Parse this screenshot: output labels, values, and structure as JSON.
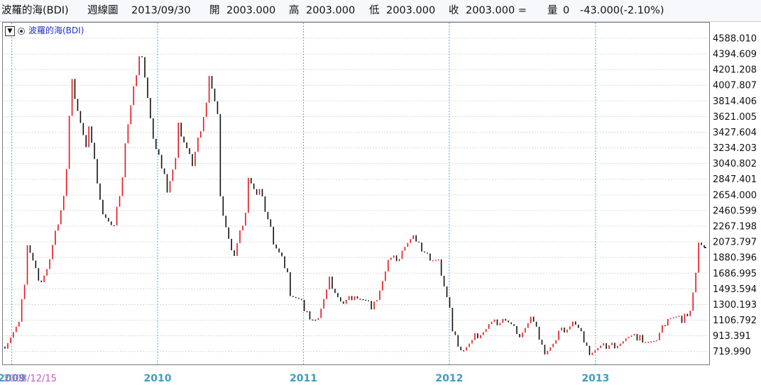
{
  "header": {
    "name": "波羅的海(BDI)",
    "period": "週線圖",
    "date": "2013/09/30",
    "open_label": "開",
    "open": "2003.000",
    "high_label": "高",
    "high": "2003.000",
    "low_label": "低",
    "low": "2003.000",
    "close_label": "收",
    "close": "2003.000 =",
    "volume_label": "量",
    "volume": "0",
    "change": "-43.000(-2.10%)"
  },
  "legend": {
    "dropdown_icon": "▼",
    "series": "波羅的海(BDI)"
  },
  "colors": {
    "up": "#e8141b",
    "down": "#111111",
    "year_label": "#3a9fc0",
    "start_label": "#c060c0",
    "grid": "#d8d8d8",
    "year_line": "#5aaed0",
    "legend": "#1f2fd0"
  },
  "chart_data": {
    "type": "candlestick",
    "title": "波羅的海(BDI)",
    "x_start_label": "2008/12/15",
    "x_year_labels": [
      "2009",
      "2010",
      "2011",
      "2012",
      "2013"
    ],
    "y_ticks": [
      "719.990",
      "913.391",
      "1106.792",
      "1300.193",
      "1493.594",
      "1686.995",
      "1880.396",
      "2073.797",
      "2267.198",
      "2460.599",
      "2654.000",
      "2847.401",
      "3040.802",
      "3234.203",
      "3427.604",
      "3621.005",
      "3814.406",
      "4007.807",
      "4201.208",
      "4394.609",
      "4588.010"
    ],
    "ylim": [
      560,
      4780
    ],
    "grid": true,
    "weekly_close": [
      [
        "2008/12/15",
        780,
        800
      ],
      [
        "2009/01/19",
        1050,
        1070
      ],
      [
        "2009/02/09",
        1850,
        2050
      ],
      [
        "2009/03/09",
        1600,
        1550
      ],
      [
        "2009/04/06",
        1800,
        1850
      ],
      [
        "2009/05/18",
        2800,
        3000
      ],
      [
        "2009/06/01",
        4280,
        4050
      ],
      [
        "2009/07/13",
        3050,
        3500
      ],
      [
        "2009/08/17",
        2400,
        2450
      ],
      [
        "2009/09/14",
        2200,
        2250
      ],
      [
        "2009/10/12",
        3100,
        3300
      ],
      [
        "2009/11/23",
        4600,
        4400
      ],
      [
        "2009/12/28",
        3050,
        3200
      ],
      [
        "2010/01/25",
        2850,
        2700
      ],
      [
        "2010/02/22",
        3200,
        3500
      ],
      [
        "2010/03/29",
        3050,
        3000
      ],
      [
        "2010/05/10",
        3950,
        4150
      ],
      [
        "2010/06/07",
        3450,
        2600
      ],
      [
        "2010/07/12",
        1800,
        1900
      ],
      [
        "2010/08/16",
        2600,
        2900
      ],
      [
        "2010/09/13",
        2550,
        2700
      ],
      [
        "2010/10/18",
        2150,
        2050
      ],
      [
        "2010/11/29",
        1650,
        1450
      ],
      [
        "2011/01/03",
        1300,
        1200
      ],
      [
        "2011/02/07",
        1100,
        1150
      ],
      [
        "2011/03/07",
        1550,
        1600
      ],
      [
        "2011/04/11",
        1250,
        1300
      ],
      [
        "2011/05/16",
        1450,
        1400
      ],
      [
        "2011/06/27",
        1250,
        1300
      ],
      [
        "2011/08/01",
        1800,
        1850
      ],
      [
        "2011/09/05",
        1900,
        2000
      ],
      [
        "2011/10/10",
        2150,
        2050
      ],
      [
        "2011/11/14",
        1900,
        1850
      ],
      [
        "2011/12/12",
        1800,
        1700
      ],
      [
        "2012/01/09",
        1100,
        950
      ],
      [
        "2012/02/06",
        700,
        750
      ],
      [
        "2012/03/05",
        850,
        900
      ],
      [
        "2012/04/09",
        1000,
        1050
      ],
      [
        "2012/05/14",
        1100,
        1150
      ],
      [
        "2012/06/18",
        950,
        900
      ],
      [
        "2012/07/23",
        1100,
        1150
      ],
      [
        "2012/08/27",
        750,
        720
      ],
      [
        "2012/10/01",
        850,
        950
      ],
      [
        "2012/11/05",
        1050,
        1100
      ],
      [
        "2012/12/17",
        750,
        720
      ],
      [
        "2013/02/04",
        800,
        780
      ],
      [
        "2013/03/18",
        850,
        900
      ],
      [
        "2013/04/22",
        900,
        880
      ],
      [
        "2013/06/03",
        800,
        850
      ],
      [
        "2013/07/01",
        1150,
        1150
      ],
      [
        "2013/08/12",
        1100,
        1150
      ],
      [
        "2013/09/02",
        1300,
        1450
      ],
      [
        "2013/09/16",
        1900,
        2100
      ],
      [
        "2013/09/30",
        2003,
        2003
      ]
    ]
  }
}
